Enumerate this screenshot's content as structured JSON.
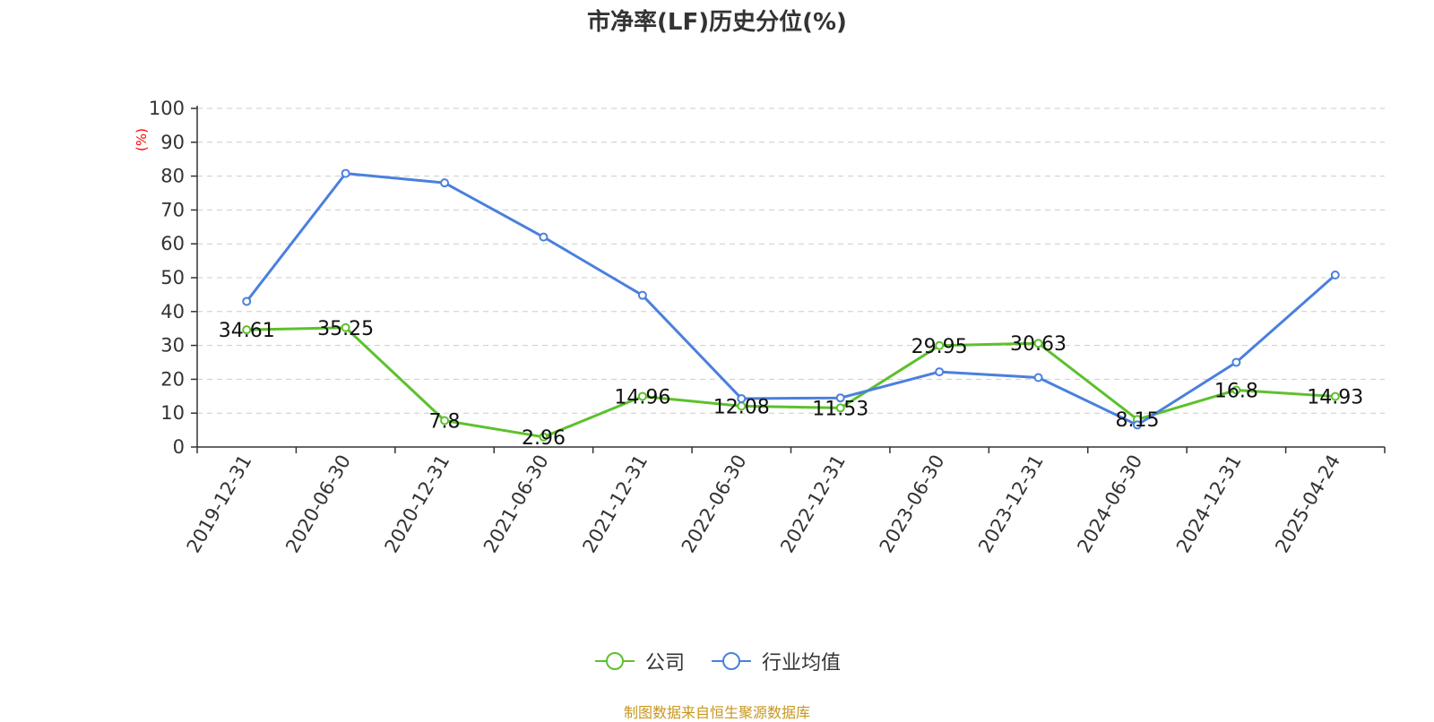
{
  "chart_data": {
    "type": "line",
    "title": "市净率(LF)历史分位(%)",
    "ylabel": "(%)",
    "ylim": [
      0,
      100
    ],
    "yticks": [
      0,
      10,
      20,
      30,
      40,
      50,
      60,
      70,
      80,
      90,
      100
    ],
    "grid": true,
    "legend_position": "bottom",
    "categories": [
      "2019-12-31",
      "2020-06-30",
      "2020-12-31",
      "2021-06-30",
      "2021-12-31",
      "2022-06-30",
      "2022-12-31",
      "2023-06-30",
      "2023-12-31",
      "2024-06-30",
      "2024-12-31",
      "2025-04-24"
    ],
    "series": [
      {
        "name": "公司",
        "color": "#5cc12c",
        "values": [
          34.61,
          35.25,
          7.8,
          2.96,
          14.96,
          12.08,
          11.53,
          29.95,
          30.63,
          8.15,
          16.8,
          14.93
        ],
        "labels": [
          "34.61",
          "35.25",
          "7.8",
          "2.96",
          "14.96",
          "12.08",
          "11.53",
          "29.95",
          "30.63",
          "8.15",
          "16.8",
          "14.93"
        ]
      },
      {
        "name": "行业均值",
        "color": "#4a80dd",
        "values": [
          43.0,
          80.8,
          78.0,
          62.0,
          44.8,
          14.3,
          14.5,
          22.2,
          20.5,
          6.5,
          25.0,
          50.8
        ]
      }
    ]
  },
  "source": "制图数据来自恒生聚源数据库"
}
